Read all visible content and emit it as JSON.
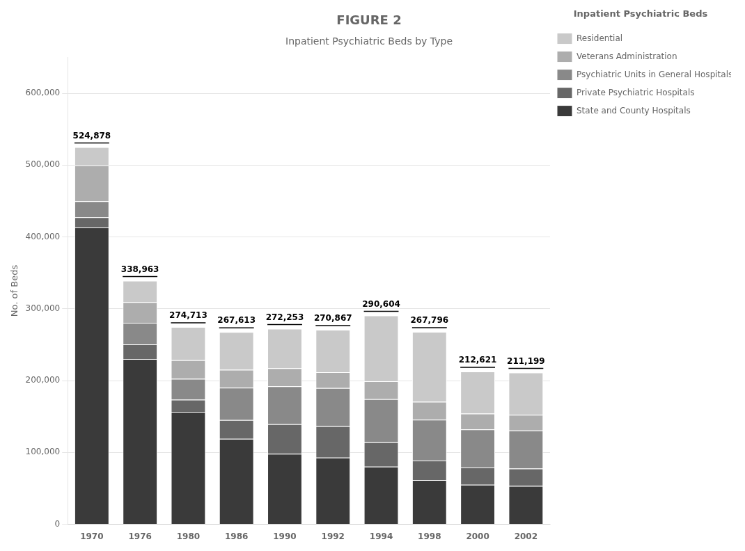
{
  "chart_data": {
    "type": "bar",
    "stacked": true,
    "title": "FIGURE 2",
    "subtitle": "Inpatient Psychiatric Beds by Type",
    "ylabel": "No. of Beds",
    "legend_title": "Inpatient Psychiatric Beds",
    "legend": "upper right",
    "grid": true,
    "categories": [
      "1970",
      "1976",
      "1980",
      "1986",
      "1990",
      "1992",
      "1994",
      "1998",
      "2000",
      "2002"
    ],
    "series": [
      {
        "name": "State and County Hospitals",
        "color": "#3a3a3a",
        "values": [
          413066,
          230038,
          156482,
          119033,
          98188,
          92705,
          80144,
          61604,
          55000,
          53479
        ]
      },
      {
        "name": "Private Psychiatric Hospitals",
        "color": "#676767",
        "values": [
          14295,
          20300,
          17000,
          26000,
          41000,
          44000,
          34000,
          27000,
          24000,
          24000
        ]
      },
      {
        "name": "Psychiatric Units in General Hospitals",
        "color": "#898989",
        "values": [
          22394,
          30000,
          29000,
          45000,
          53000,
          53000,
          60000,
          57000,
          53000,
          53000
        ]
      },
      {
        "name": "Veterans Administration",
        "color": "#adadad",
        "values": [
          50000,
          29000,
          26000,
          25000,
          25000,
          22000,
          25000,
          25000,
          22000,
          22000
        ]
      },
      {
        "name": "Residential",
        "color": "#c9c9c9",
        "values": [
          25123,
          29625,
          46231,
          52580,
          55065,
          59162,
          91460,
          97192,
          58621,
          58720
        ]
      }
    ],
    "totals": [
      524878,
      338963,
      274713,
      267613,
      272253,
      270867,
      290604,
      267796,
      212621,
      211199
    ],
    "total_labels": [
      "524,878",
      "338,963",
      "274,713",
      "267,613",
      "272,253",
      "270,867",
      "290,604",
      "267,796",
      "212,621",
      "211,199"
    ],
    "ylim": [
      0,
      650000
    ],
    "yticks": [
      0,
      {
        "value": 100000,
        "label": "100,000"
      },
      {
        "value": 200000,
        "label": "200,000"
      },
      {
        "value": 300000,
        "label": "300,000"
      },
      {
        "value": 400000,
        "label": "400,000"
      },
      {
        "value": 500000,
        "label": "500,000"
      },
      {
        "value": 600000,
        "label": "600,000"
      }
    ]
  }
}
